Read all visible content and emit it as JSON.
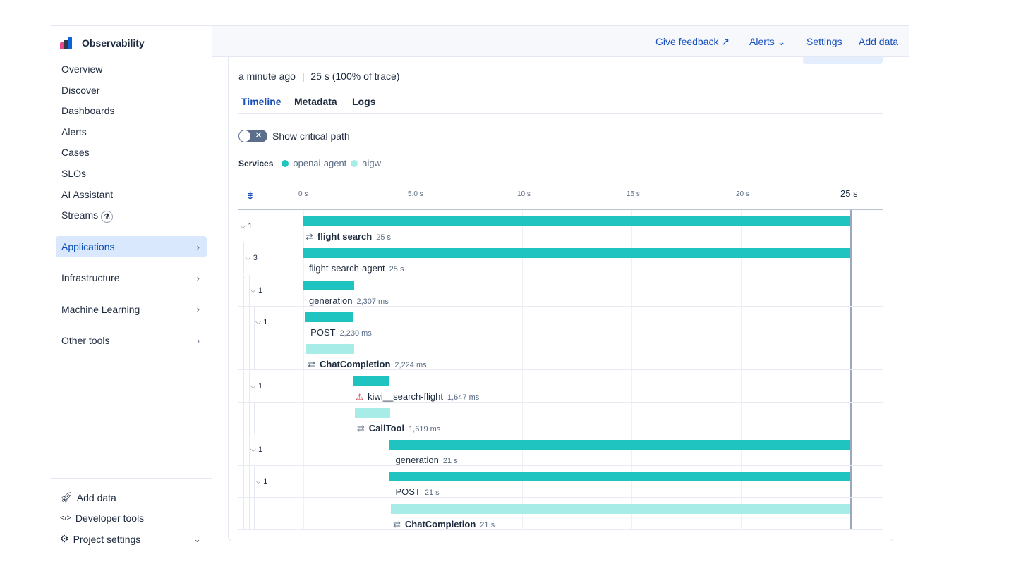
{
  "sidebar": {
    "brand": "Observability",
    "items": [
      {
        "label": "Overview"
      },
      {
        "label": "Discover"
      },
      {
        "label": "Dashboards"
      },
      {
        "label": "Alerts"
      },
      {
        "label": "Cases"
      },
      {
        "label": "SLOs"
      },
      {
        "label": "AI Assistant"
      },
      {
        "label": "Streams"
      }
    ],
    "groups": [
      {
        "label": "Applications",
        "active": true
      },
      {
        "label": "Infrastructure"
      },
      {
        "label": "Machine Learning"
      },
      {
        "label": "Other tools"
      }
    ],
    "footer": [
      {
        "label": "Add data",
        "icon": "rocket-icon"
      },
      {
        "label": "Developer tools",
        "icon": "code-icon"
      },
      {
        "label": "Project settings",
        "icon": "gear-icon"
      }
    ]
  },
  "header": {
    "give_feedback": "Give feedback",
    "alerts": "Alerts",
    "settings": "Settings",
    "add_data": "Add data"
  },
  "summary": {
    "time_ago": "a minute ago",
    "duration": "25 s",
    "percent": "(100% of trace)"
  },
  "tabs": [
    {
      "label": "Timeline",
      "active": true
    },
    {
      "label": "Metadata"
    },
    {
      "label": "Logs"
    }
  ],
  "critical_path": {
    "label": "Show critical path",
    "enabled": false
  },
  "services": {
    "label": "Services",
    "items": [
      {
        "name": "openai-agent",
        "color": "#1fc3bf"
      },
      {
        "name": "aigw",
        "color": "#a8ece8"
      }
    ]
  },
  "timeline": {
    "max_s": 25,
    "ticks": [
      {
        "label": "0 s",
        "value": 0
      },
      {
        "label": "5.0 s",
        "value": 5
      },
      {
        "label": "10 s",
        "value": 10
      },
      {
        "label": "15 s",
        "value": 15
      },
      {
        "label": "20 s",
        "value": 20
      },
      {
        "label": "25 s",
        "value": 25
      }
    ],
    "spans": [
      {
        "name": "flight search",
        "duration": "25 s",
        "start_s": 0,
        "dur_s": 25,
        "service": 0,
        "count": "1",
        "depth": 0,
        "type": "transaction",
        "bold": true
      },
      {
        "name": "flight-search-agent",
        "duration": "25 s",
        "start_s": 0,
        "dur_s": 25,
        "service": 0,
        "count": "3",
        "depth": 1
      },
      {
        "name": "generation",
        "duration": "2,307 ms",
        "start_s": 0,
        "dur_s": 2.307,
        "service": 0,
        "count": "1",
        "depth": 2
      },
      {
        "name": "POST",
        "duration": "2,230 ms",
        "start_s": 0.07,
        "dur_s": 2.23,
        "service": 0,
        "count": "1",
        "depth": 3
      },
      {
        "name": "ChatCompletion",
        "duration": "2,224 ms",
        "start_s": 0.1,
        "dur_s": 2.224,
        "service": 1,
        "count": "",
        "depth": 4,
        "type": "transaction",
        "bold": true
      },
      {
        "name": "kiwi__search-flight",
        "duration": "1,647 ms",
        "start_s": 2.3,
        "dur_s": 1.647,
        "service": 0,
        "count": "1",
        "depth": 2,
        "warning": true
      },
      {
        "name": "CallTool",
        "duration": "1,619 ms",
        "start_s": 2.35,
        "dur_s": 1.619,
        "service": 1,
        "count": "",
        "depth": 3,
        "type": "transaction",
        "bold": true
      },
      {
        "name": "generation",
        "duration": "21 s",
        "start_s": 3.95,
        "dur_s": 21.05,
        "service": 0,
        "count": "1",
        "depth": 2
      },
      {
        "name": "POST",
        "duration": "21 s",
        "start_s": 3.95,
        "dur_s": 21.05,
        "service": 0,
        "count": "1",
        "depth": 3
      },
      {
        "name": "ChatCompletion",
        "duration": "21 s",
        "start_s": 4.0,
        "dur_s": 21.0,
        "service": 1,
        "count": "",
        "depth": 4,
        "type": "transaction",
        "bold": true
      }
    ]
  }
}
